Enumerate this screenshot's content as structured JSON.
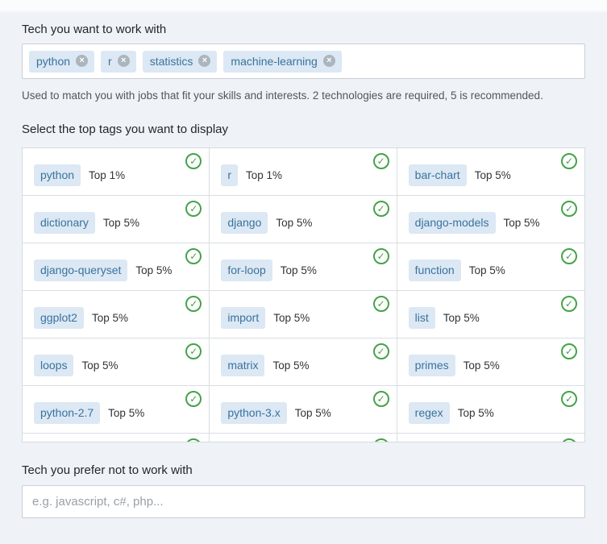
{
  "sections": {
    "want": {
      "heading": "Tech you want to work with",
      "chips": [
        {
          "label": "python"
        },
        {
          "label": "r"
        },
        {
          "label": "statistics"
        },
        {
          "label": "machine-learning"
        }
      ],
      "help": "Used to match you with jobs that fit your skills and interests. 2 technologies are required, 5 is recommended."
    },
    "top_tags": {
      "heading": "Select the top tags you want to display",
      "cells": [
        {
          "tag": "python",
          "rank": "Top 1%"
        },
        {
          "tag": "r",
          "rank": "Top 1%"
        },
        {
          "tag": "bar-chart",
          "rank": "Top 5%"
        },
        {
          "tag": "dictionary",
          "rank": "Top 5%"
        },
        {
          "tag": "django",
          "rank": "Top 5%"
        },
        {
          "tag": "django-models",
          "rank": "Top 5%"
        },
        {
          "tag": "django-queryset",
          "rank": "Top 5%"
        },
        {
          "tag": "for-loop",
          "rank": "Top 5%"
        },
        {
          "tag": "function",
          "rank": "Top 5%"
        },
        {
          "tag": "ggplot2",
          "rank": "Top 5%"
        },
        {
          "tag": "import",
          "rank": "Top 5%"
        },
        {
          "tag": "list",
          "rank": "Top 5%"
        },
        {
          "tag": "loops",
          "rank": "Top 5%"
        },
        {
          "tag": "matrix",
          "rank": "Top 5%"
        },
        {
          "tag": "primes",
          "rank": "Top 5%"
        },
        {
          "tag": "python-2.7",
          "rank": "Top 5%"
        },
        {
          "tag": "python-3.x",
          "rank": "Top 5%"
        },
        {
          "tag": "regex",
          "rank": "Top 5%"
        }
      ],
      "partial_row_cells": 3
    },
    "avoid": {
      "heading": "Tech you prefer not to work with",
      "placeholder": "e.g. javascript, c#, php..."
    }
  },
  "icons": {
    "remove_glyph": "×",
    "check_glyph": "✓"
  },
  "colors": {
    "page_bg": "#eff3f8",
    "chip_bg": "#dce8f4",
    "chip_text": "#39739d",
    "check_green": "#44a348",
    "grid_border": "#d4dae0"
  }
}
